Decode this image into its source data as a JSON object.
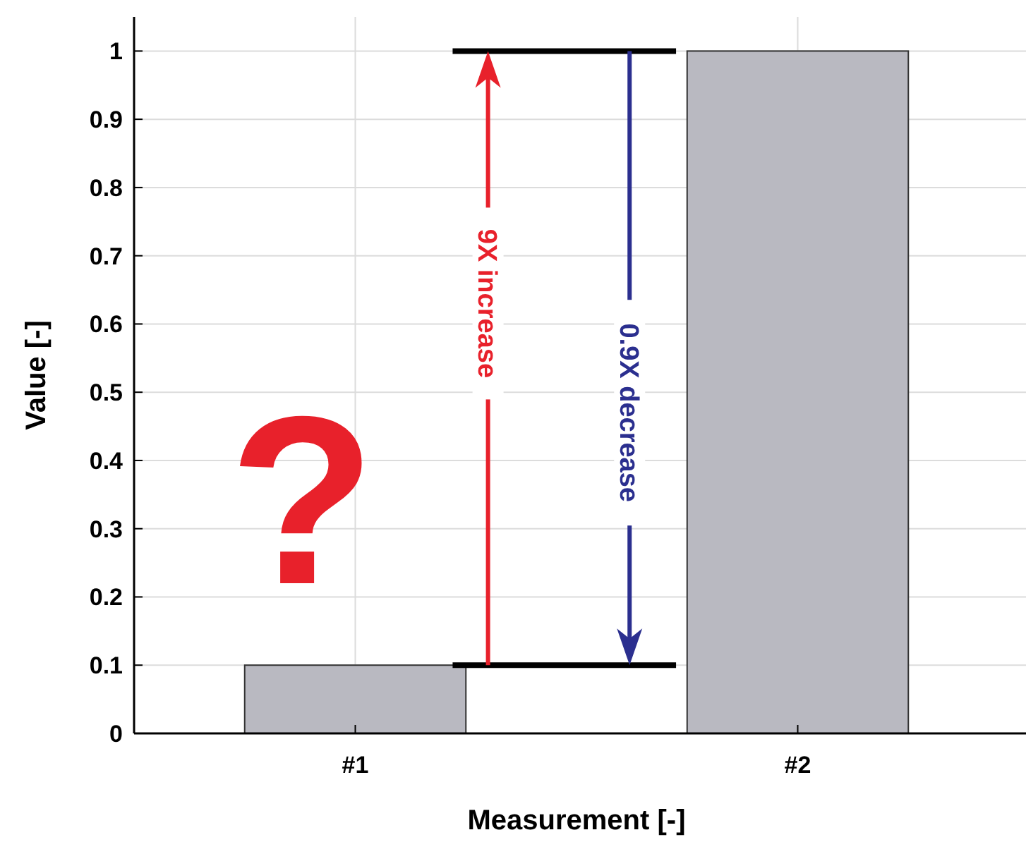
{
  "chart_data": {
    "type": "bar",
    "xlabel": "Measurement [-]",
    "ylabel": "Value [-]",
    "categories": [
      "#1",
      "#2"
    ],
    "values": [
      0.1,
      1
    ],
    "color": "#b9b9c1",
    "ylim": [
      0,
      1.05
    ],
    "yticks": [
      0,
      0.1,
      0.2,
      0.3,
      0.4,
      0.5,
      0.6,
      0.7,
      0.8,
      0.9,
      1
    ],
    "grid": true,
    "annotations": [
      "?",
      "9X increase",
      "0.9X decrease"
    ]
  }
}
